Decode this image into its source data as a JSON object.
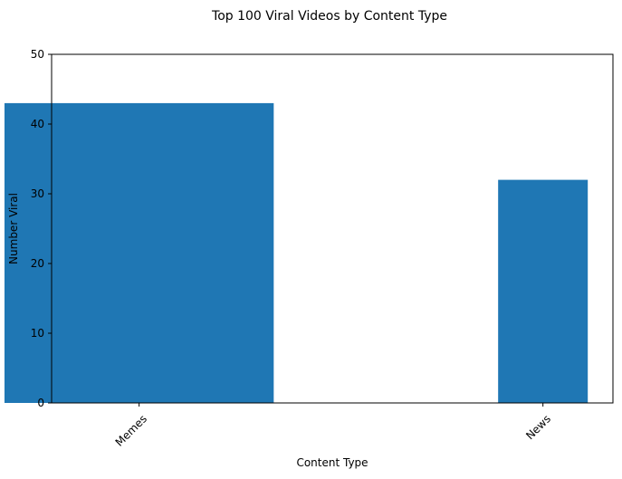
{
  "chart_data": {
    "type": "bar",
    "title": "Top 100 Viral Videos by Content Type",
    "xlabel": "Content Type",
    "ylabel": "Number Viral",
    "categories": [
      "Memes",
      "News"
    ],
    "category_positions": [
      1,
      4
    ],
    "bar_widths": [
      2,
      0.666
    ],
    "values": [
      43,
      32
    ],
    "ylim": [
      0,
      50
    ],
    "xlim": [
      0.35,
      4.52
    ],
    "yticks": [
      0,
      10,
      20,
      30,
      40,
      50
    ],
    "xtick_rotation": 45,
    "grid": false,
    "legend": "none",
    "bar_color": "#1f77b4"
  }
}
